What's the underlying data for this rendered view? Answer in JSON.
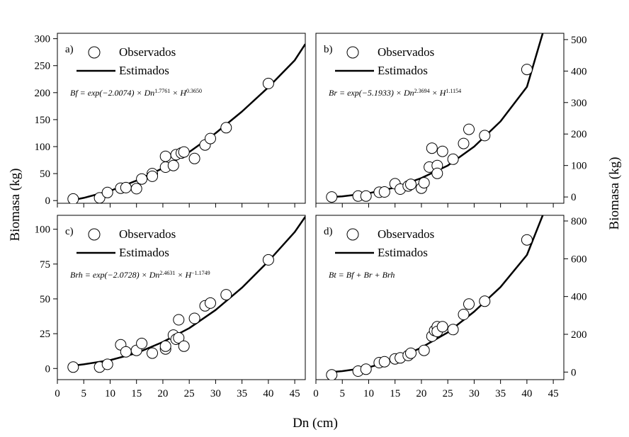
{
  "figure": {
    "xlabel": "Dn (cm)",
    "ylabel_left": "Biomasa (kg)",
    "ylabel_right": "Biomasa (kg)"
  },
  "legend": {
    "observed": "Observados",
    "estimated": "Estimados"
  },
  "colors": {
    "line": "#000000",
    "marker_edge": "#000000",
    "marker_fill": "#ffffff",
    "background": "#ffffff"
  },
  "chart_data": [
    {
      "id": "a",
      "type": "scatter",
      "panel_label": "a)",
      "equation": "Bf = exp(−2.0074) × Dn^1.7761 × H^0.3650",
      "title": "",
      "xlabel": "Dn (cm)",
      "ylabel": "Biomasa (kg)",
      "xlim": [
        0,
        47
      ],
      "ylim": [
        -5,
        310
      ],
      "x_ticks": [
        0,
        5,
        10,
        15,
        20,
        25,
        30,
        35,
        40,
        45
      ],
      "y_ticks": [
        0,
        50,
        100,
        150,
        200,
        250,
        300
      ],
      "y_axis_side": "left",
      "legend_position": "top-left",
      "series": [
        {
          "name": "Observados",
          "kind": "scatter",
          "x": [
            3,
            8,
            9.5,
            12,
            13,
            15,
            16,
            18,
            18,
            20.5,
            20.5,
            22,
            22.5,
            23.5,
            24,
            26,
            28,
            29,
            32,
            40
          ],
          "y": [
            3,
            5,
            15,
            23,
            24,
            22,
            40,
            50,
            45,
            62,
            82,
            65,
            85,
            88,
            90,
            78,
            103,
            115,
            135,
            217
          ]
        },
        {
          "name": "Estimados",
          "kind": "line",
          "x": [
            3,
            5,
            10,
            15,
            20,
            25,
            30,
            35,
            40,
            45,
            47
          ],
          "y": [
            1,
            5,
            18,
            37,
            60,
            90,
            125,
            165,
            210,
            260,
            290
          ]
        }
      ]
    },
    {
      "id": "b",
      "type": "scatter",
      "panel_label": "b)",
      "equation": "Br = exp(−5.1933) × Dn^2.3694 × H^1.1154",
      "title": "",
      "xlabel": "Dn (cm)",
      "ylabel": "Biomasa (kg)",
      "xlim": [
        0,
        47
      ],
      "ylim": [
        -20,
        520
      ],
      "x_ticks": [
        0,
        5,
        10,
        15,
        20,
        25,
        30,
        35,
        40,
        45
      ],
      "y_ticks": [
        0,
        100,
        200,
        300,
        400,
        500
      ],
      "y_axis_side": "right",
      "legend_position": "top-left",
      "series": [
        {
          "name": "Observados",
          "kind": "scatter",
          "x": [
            3,
            8,
            9.5,
            12,
            13,
            15,
            16,
            17.5,
            18,
            20,
            20.5,
            21.5,
            22,
            23,
            23,
            24,
            26,
            28,
            29,
            32,
            40
          ],
          "y": [
            0,
            3,
            3,
            15,
            16,
            42,
            25,
            35,
            40,
            28,
            45,
            95,
            155,
            100,
            75,
            145,
            120,
            170,
            215,
            195,
            405
          ]
        },
        {
          "name": "Estimados",
          "kind": "line",
          "x": [
            3,
            5,
            10,
            15,
            20,
            25,
            30,
            35,
            40,
            43
          ],
          "y": [
            0,
            2,
            12,
            30,
            60,
            100,
            160,
            240,
            350,
            520
          ]
        }
      ]
    },
    {
      "id": "c",
      "type": "scatter",
      "panel_label": "c)",
      "equation": "Brh = exp(−2.0728) × Dn^2.4631 × H^−1.1749",
      "title": "",
      "xlabel": "Dn (cm)",
      "ylabel": "Biomasa (kg)",
      "xlim": [
        0,
        47
      ],
      "ylim": [
        -8,
        110
      ],
      "x_ticks": [
        0,
        5,
        10,
        15,
        20,
        25,
        30,
        35,
        40,
        45
      ],
      "y_ticks": [
        0,
        25,
        50,
        75,
        100
      ],
      "y_axis_side": "left",
      "legend_position": "top-left",
      "series": [
        {
          "name": "Observados",
          "kind": "scatter",
          "x": [
            3,
            8,
            9.5,
            12,
            13,
            15,
            16,
            18,
            20.5,
            20.5,
            22,
            22.5,
            23,
            23,
            24,
            26,
            28,
            29,
            32,
            40
          ],
          "y": [
            1,
            1,
            3,
            17,
            12,
            13,
            18,
            11,
            14,
            16,
            24,
            21,
            22,
            35,
            16,
            36,
            45,
            47,
            53,
            78
          ]
        },
        {
          "name": "Estimados",
          "kind": "line",
          "x": [
            3,
            5,
            10,
            15,
            20,
            25,
            30,
            35,
            40,
            45,
            47
          ],
          "y": [
            2,
            3,
            6,
            11,
            19,
            29,
            42,
            58,
            77,
            98,
            109
          ]
        }
      ]
    },
    {
      "id": "d",
      "type": "scatter",
      "panel_label": "d)",
      "equation": "Bt = Bf + Br + Brh",
      "title": "",
      "xlabel": "Dn (cm)",
      "ylabel": "Biomasa (kg)",
      "xlim": [
        0,
        47
      ],
      "ylim": [
        -40,
        830
      ],
      "x_ticks": [
        0,
        5,
        10,
        15,
        20,
        25,
        30,
        35,
        40,
        45
      ],
      "y_ticks": [
        0,
        200,
        400,
        600,
        800
      ],
      "y_axis_side": "right",
      "legend_position": "top-left",
      "series": [
        {
          "name": "Observados",
          "kind": "scatter",
          "x": [
            3,
            8,
            9.5,
            12,
            13,
            15,
            16,
            17.5,
            18,
            20.5,
            22,
            22.5,
            23,
            23,
            24,
            26,
            28,
            29,
            32,
            40
          ],
          "y": [
            -15,
            5,
            15,
            50,
            55,
            70,
            75,
            88,
            100,
            115,
            190,
            220,
            240,
            215,
            240,
            225,
            305,
            360,
            375,
            700
          ]
        },
        {
          "name": "Estimados",
          "kind": "line",
          "x": [
            3,
            5,
            10,
            15,
            20,
            25,
            30,
            35,
            40,
            43
          ],
          "y": [
            0,
            5,
            25,
            65,
            130,
            210,
            320,
            450,
            620,
            830
          ]
        }
      ]
    }
  ]
}
